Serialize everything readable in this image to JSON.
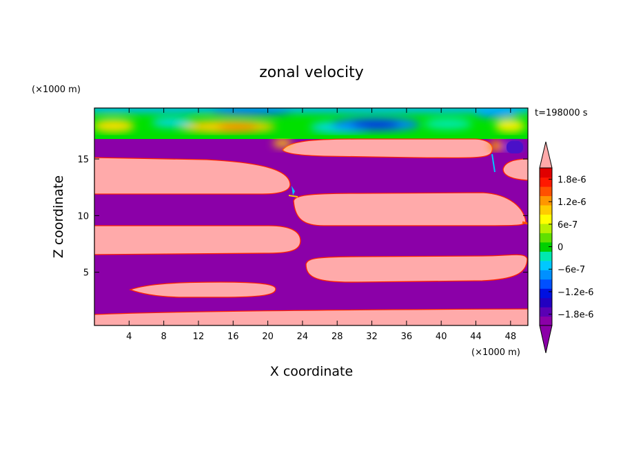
{
  "chart_data": {
    "type": "heatmap",
    "title": "zonal velocity",
    "time_label": "t=198000 s",
    "xlabel": "X coordinate",
    "ylabel": "Z coordinate",
    "x_unit": "(×1000 m)",
    "y_unit": "(×1000 m)",
    "xlim": [
      0,
      50
    ],
    "ylim": [
      0.3,
      19.5
    ],
    "x_ticks": [
      4,
      8,
      12,
      16,
      20,
      24,
      28,
      32,
      36,
      40,
      44,
      48
    ],
    "y_ticks": [
      5,
      10,
      15
    ],
    "grid": false,
    "colorbar": {
      "labels": [
        "1.8e-6",
        "1.2e-6",
        "6e-7",
        "0",
        "−6e-7",
        "−1.2e-6",
        "−1.8e-6"
      ],
      "label_values": [
        1.8e-06,
        1.2e-06,
        6e-07,
        0,
        -6e-07,
        -1.2e-06,
        -1.8e-06
      ],
      "range": [
        -2.1e-06,
        2.1e-06
      ],
      "over_color": "#ffaaaa",
      "under_color": "#8b00a8",
      "colors": [
        "#8b00a8",
        "#5a00b4",
        "#2200c0",
        "#0010e0",
        "#0050ff",
        "#0090ff",
        "#00c8ff",
        "#00e8b0",
        "#00d000",
        "#60e000",
        "#b8f000",
        "#ffff00",
        "#ffcc00",
        "#ff9600",
        "#ff5000",
        "#ff1800",
        "#e00000"
      ]
    }
  }
}
